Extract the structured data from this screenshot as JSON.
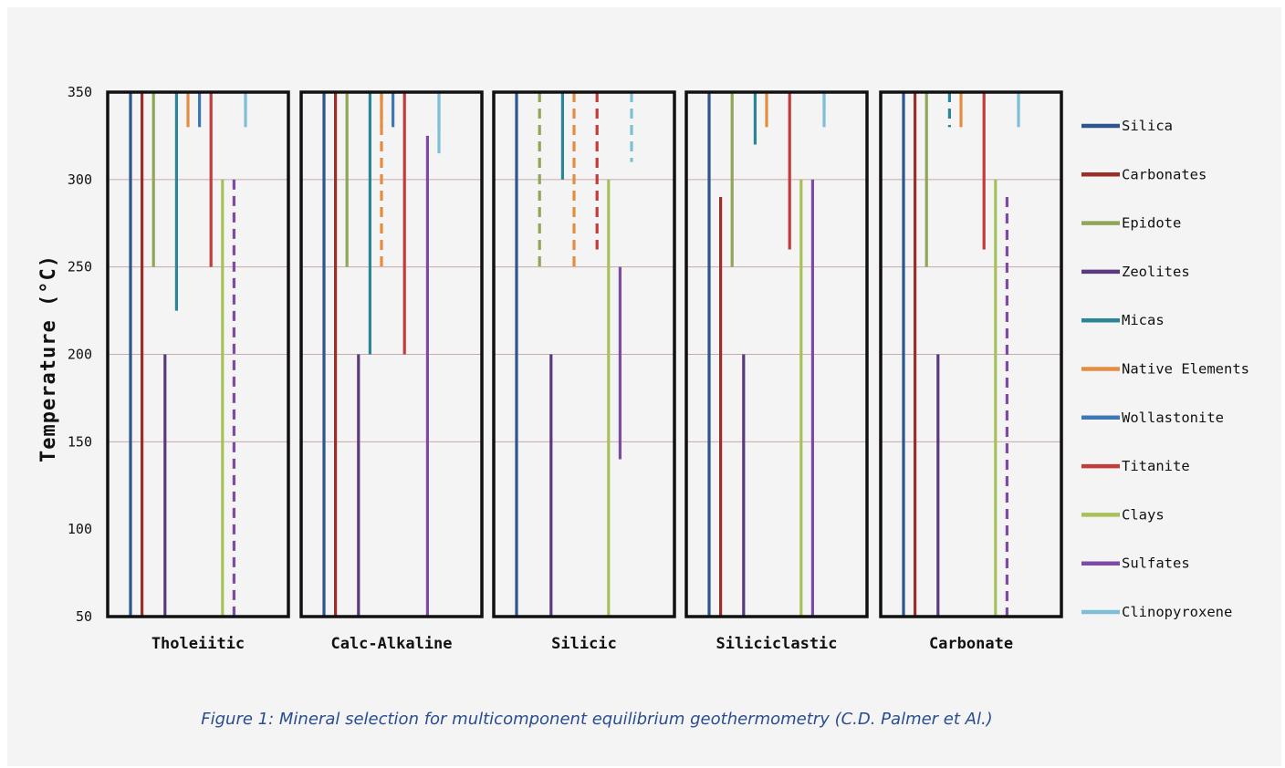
{
  "figure": {
    "caption": "Figure 1: Mineral selection for multicomponent equilibrium geothermometry (C.D. Palmer et Al.)"
  },
  "chart_data": {
    "type": "bar",
    "ylabel": "Temperature (°C)",
    "ylim": [
      50,
      350
    ],
    "yticks": [
      350,
      300,
      250,
      200,
      150,
      100,
      50
    ],
    "grid_lines": [
      300,
      250,
      200,
      150
    ],
    "legend_position": "right",
    "series": [
      {
        "name": "Silica",
        "color": "#2e5590"
      },
      {
        "name": "Carbonates",
        "color": "#9b2e28"
      },
      {
        "name": "Epidote",
        "color": "#8ea656"
      },
      {
        "name": "Zeolites",
        "color": "#5a3a7e"
      },
      {
        "name": "Micas",
        "color": "#2a8598"
      },
      {
        "name": "Native Elements",
        "color": "#e58c3e"
      },
      {
        "name": "Wollastonite",
        "color": "#3f76b6"
      },
      {
        "name": "Titanite",
        "color": "#c13c3a"
      },
      {
        "name": "Clays",
        "color": "#a6c05a"
      },
      {
        "name": "Sulfates",
        "color": "#7f4aa6"
      },
      {
        "name": "Clinopyroxene",
        "color": "#7ebfd8"
      }
    ],
    "panels": [
      {
        "name": "Tholeiitic",
        "ranges": [
          {
            "series": "Silica",
            "low": 50,
            "high": 350,
            "dashed": false
          },
          {
            "series": "Carbonates",
            "low": 50,
            "high": 350,
            "dashed": false
          },
          {
            "series": "Epidote",
            "low": 250,
            "high": 350,
            "dashed": false
          },
          {
            "series": "Zeolites",
            "low": 50,
            "high": 200,
            "dashed": false
          },
          {
            "series": "Micas",
            "low": 225,
            "high": 350,
            "dashed": false
          },
          {
            "series": "Wollastonite",
            "low": 330,
            "high": 350,
            "dashed": false
          },
          {
            "series": "Titanite",
            "low": 250,
            "high": 350,
            "dashed": false
          },
          {
            "series": "Clays",
            "low": 50,
            "high": 300,
            "dashed": false
          },
          {
            "series": "Sulfates",
            "low": 50,
            "high": 300,
            "dashed": true
          },
          {
            "series": "Clinopyroxene",
            "low": 330,
            "high": 350,
            "dashed": false
          },
          {
            "series": "Native Elements",
            "low": 330,
            "high": 350,
            "dashed": false
          },
          {
            "series": "Clinopyroxene",
            "low": 340,
            "high": 350,
            "dashed": false
          }
        ]
      },
      {
        "name": "Calc-Alkaline",
        "ranges": [
          {
            "series": "Silica",
            "low": 50,
            "high": 350,
            "dashed": false
          },
          {
            "series": "Carbonates",
            "low": 50,
            "high": 350,
            "dashed": false
          },
          {
            "series": "Epidote",
            "low": 250,
            "high": 350,
            "dashed": false
          },
          {
            "series": "Zeolites",
            "low": 50,
            "high": 200,
            "dashed": false
          },
          {
            "series": "Micas",
            "low": 200,
            "high": 350,
            "dashed": false
          },
          {
            "series": "Native Elements",
            "low": 250,
            "high": 350,
            "dashed": true
          },
          {
            "series": "Wollastonite",
            "low": 330,
            "high": 350,
            "dashed": false
          },
          {
            "series": "Titanite",
            "low": 200,
            "high": 350,
            "dashed": false
          },
          {
            "series": "Sulfates",
            "low": 50,
            "high": 325,
            "dashed": false
          },
          {
            "series": "Clinopyroxene",
            "low": 330,
            "high": 350,
            "dashed": false
          },
          {
            "series": "Native Elements",
            "low": 330,
            "high": 350,
            "dashed": false
          },
          {
            "series": "Clinopyroxene",
            "low": 315,
            "high": 350,
            "dashed": false
          }
        ]
      },
      {
        "name": "Silicic",
        "ranges": [
          {
            "series": "Silica",
            "low": 50,
            "high": 350,
            "dashed": false
          },
          {
            "series": "Epidote",
            "low": 250,
            "high": 350,
            "dashed": true
          },
          {
            "series": "Zeolites",
            "low": 50,
            "high": 200,
            "dashed": false
          },
          {
            "series": "Micas",
            "low": 300,
            "high": 350,
            "dashed": false
          },
          {
            "series": "Native Elements",
            "low": 250,
            "high": 350,
            "dashed": true
          },
          {
            "series": "Titanite",
            "low": 260,
            "high": 350,
            "dashed": true
          },
          {
            "series": "Clays",
            "low": 50,
            "high": 300,
            "dashed": false
          },
          {
            "series": "Sulfates",
            "low": 140,
            "high": 250,
            "dashed": false
          },
          {
            "series": "Clinopyroxene",
            "low": 310,
            "high": 350,
            "dashed": true
          }
        ]
      },
      {
        "name": "Siliciclastic",
        "ranges": [
          {
            "series": "Silica",
            "low": 50,
            "high": 350,
            "dashed": false
          },
          {
            "series": "Carbonates",
            "low": 50,
            "high": 290,
            "dashed": false
          },
          {
            "series": "Epidote",
            "low": 250,
            "high": 350,
            "dashed": false
          },
          {
            "series": "Zeolites",
            "low": 50,
            "high": 200,
            "dashed": false
          },
          {
            "series": "Micas",
            "low": 320,
            "high": 350,
            "dashed": false
          },
          {
            "series": "Titanite",
            "low": 260,
            "high": 350,
            "dashed": false
          },
          {
            "series": "Clays",
            "low": 50,
            "high": 300,
            "dashed": false
          },
          {
            "series": "Sulfates",
            "low": 50,
            "high": 300,
            "dashed": false
          },
          {
            "series": "Clinopyroxene",
            "low": 330,
            "high": 350,
            "dashed": false
          },
          {
            "series": "Native Elements",
            "low": 330,
            "high": 350,
            "dashed": false
          },
          {
            "series": "Clinopyroxene",
            "low": 340,
            "high": 350,
            "dashed": false
          }
        ]
      },
      {
        "name": "Carbonate",
        "ranges": [
          {
            "series": "Silica",
            "low": 50,
            "high": 350,
            "dashed": false
          },
          {
            "series": "Carbonates",
            "low": 50,
            "high": 350,
            "dashed": false
          },
          {
            "series": "Epidote",
            "low": 250,
            "high": 350,
            "dashed": false
          },
          {
            "series": "Zeolites",
            "low": 50,
            "high": 200,
            "dashed": false
          },
          {
            "series": "Micas",
            "low": 330,
            "high": 350,
            "dashed": true
          },
          {
            "series": "Titanite",
            "low": 260,
            "high": 350,
            "dashed": false
          },
          {
            "series": "Clays",
            "low": 50,
            "high": 300,
            "dashed": false
          },
          {
            "series": "Sulfates",
            "low": 50,
            "high": 290,
            "dashed": true
          },
          {
            "series": "Clinopyroxene",
            "low": 330,
            "high": 350,
            "dashed": false
          },
          {
            "series": "Native Elements",
            "low": 330,
            "high": 350,
            "dashed": false
          },
          {
            "series": "Clinopyroxene",
            "low": 340,
            "high": 350,
            "dashed": false
          }
        ]
      }
    ]
  }
}
